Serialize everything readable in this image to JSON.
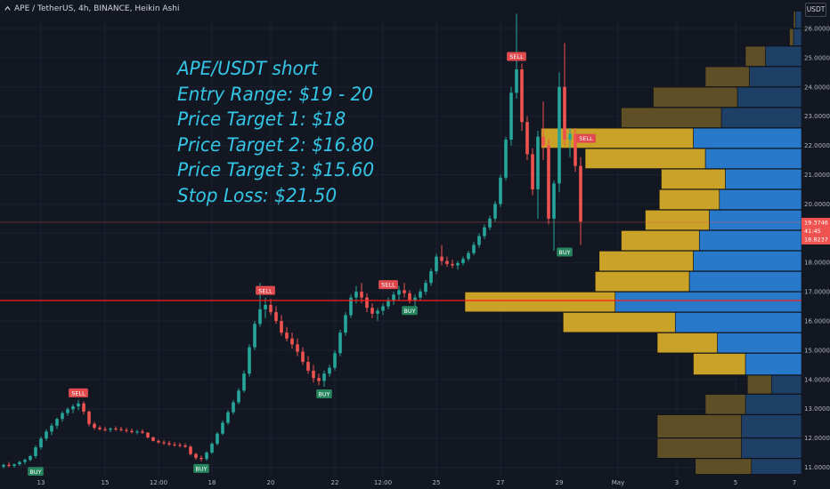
{
  "header": {
    "symbol_line": "APE / TetherUS, 4h, BINANCE, Heikin Ashi",
    "currency": "USDT"
  },
  "annotation": {
    "lines": [
      "APE/USDT short",
      "Entry Range: $19 - 20",
      "Price Target 1: $18",
      "Price Target 2: $16.80",
      "Price Target 3: $15.60",
      "Stop Loss: $21.50"
    ]
  },
  "colors": {
    "background": "#131722",
    "up": "#26a69a",
    "down": "#ef5350",
    "text": "#b2b5be",
    "annotation": "#34c6e6",
    "support_line": "#ff1a1a",
    "vp_up_bright": "#2879c9",
    "vp_down_bright": "#c9a227",
    "vp_up_dim": "#1e3f66",
    "vp_down_dim": "#5e4f26"
  },
  "price_scale": {
    "labels": [
      "26.0000",
      "25.0000",
      "24.0000",
      "23.0000",
      "22.0000",
      "21.0000",
      "20.0000",
      "19.0000",
      "18.0000",
      "17.0000",
      "16.0000",
      "15.0000",
      "14.0000",
      "13.0000",
      "12.0000",
      "11.0000"
    ]
  },
  "current_price": {
    "price": "19.3746",
    "countdown": "41:45",
    "high": "18.8237"
  },
  "time_axis": {
    "labels": [
      "13",
      "15",
      "12:00",
      "18",
      "20",
      "22",
      "12:00",
      "25",
      "27",
      "29",
      "May",
      "3",
      "5",
      "7"
    ]
  },
  "chart_data": {
    "type": "candlestick",
    "symbol": "APE / TetherUS",
    "interval": "4h",
    "exchange": "BINANCE",
    "candle_style": "Heikin Ashi",
    "ylim": [
      10.8,
      26.5
    ],
    "y_ticks": [
      11,
      12,
      13,
      14,
      15,
      16,
      17,
      18,
      19,
      20,
      21,
      22,
      23,
      24,
      25,
      26
    ],
    "x_ticks": [
      "13",
      "15",
      "12:00",
      "18",
      "20",
      "22",
      "12:00",
      "25",
      "27",
      "29",
      "May",
      "3",
      "5",
      "7"
    ],
    "x_tick_index": [
      7,
      19,
      29,
      39,
      50,
      62,
      71,
      81,
      93,
      104,
      115,
      126,
      137,
      148
    ],
    "horizontal_line": 16.7,
    "last_price": 19.3746,
    "candles": [
      [
        11.02,
        11.12,
        10.96,
        11.08
      ],
      [
        11.08,
        11.18,
        11.0,
        11.05
      ],
      [
        11.05,
        11.12,
        10.98,
        11.1
      ],
      [
        11.1,
        11.22,
        11.05,
        11.18
      ],
      [
        11.18,
        11.3,
        11.1,
        11.25
      ],
      [
        11.25,
        11.42,
        11.2,
        11.38
      ],
      [
        11.38,
        11.75,
        11.3,
        11.68
      ],
      [
        11.68,
        12.05,
        11.6,
        11.98
      ],
      [
        11.98,
        12.3,
        11.9,
        12.22
      ],
      [
        12.22,
        12.5,
        12.1,
        12.42
      ],
      [
        12.42,
        12.7,
        12.32,
        12.65
      ],
      [
        12.65,
        12.92,
        12.55,
        12.85
      ],
      [
        12.85,
        13.05,
        12.75,
        12.98
      ],
      [
        12.98,
        13.15,
        12.85,
        13.08
      ],
      [
        13.08,
        13.3,
        12.95,
        13.18
      ],
      [
        13.18,
        13.25,
        12.8,
        12.9
      ],
      [
        12.9,
        12.95,
        12.4,
        12.48
      ],
      [
        12.48,
        12.55,
        12.28,
        12.35
      ],
      [
        12.35,
        12.42,
        12.25,
        12.3
      ],
      [
        12.3,
        12.38,
        12.22,
        12.28
      ],
      [
        12.28,
        12.36,
        12.2,
        12.32
      ],
      [
        12.32,
        12.4,
        12.24,
        12.3
      ],
      [
        12.3,
        12.38,
        12.22,
        12.27
      ],
      [
        12.27,
        12.35,
        12.18,
        12.24
      ],
      [
        12.24,
        12.32,
        12.15,
        12.2
      ],
      [
        12.2,
        12.28,
        12.12,
        12.22
      ],
      [
        12.22,
        12.3,
        12.14,
        12.18
      ],
      [
        12.18,
        12.2,
        11.98,
        12.02
      ],
      [
        12.02,
        12.05,
        11.88,
        11.9
      ],
      [
        11.9,
        11.95,
        11.8,
        11.85
      ],
      [
        11.85,
        11.92,
        11.76,
        11.82
      ],
      [
        11.82,
        11.9,
        11.72,
        11.78
      ],
      [
        11.78,
        11.86,
        11.7,
        11.76
      ],
      [
        11.76,
        11.84,
        11.68,
        11.74
      ],
      [
        11.74,
        11.82,
        11.66,
        11.7
      ],
      [
        11.7,
        11.75,
        11.4,
        11.45
      ],
      [
        11.45,
        11.5,
        11.25,
        11.32
      ],
      [
        11.32,
        11.4,
        11.2,
        11.28
      ],
      [
        11.28,
        11.55,
        11.22,
        11.5
      ],
      [
        11.5,
        11.85,
        11.45,
        11.8
      ],
      [
        11.8,
        12.2,
        11.75,
        12.15
      ],
      [
        12.15,
        12.6,
        12.1,
        12.52
      ],
      [
        12.52,
        12.95,
        12.45,
        12.88
      ],
      [
        12.88,
        13.3,
        12.8,
        13.22
      ],
      [
        13.22,
        13.7,
        13.15,
        13.62
      ],
      [
        13.62,
        14.3,
        13.55,
        14.2
      ],
      [
        14.2,
        15.2,
        14.1,
        15.1
      ],
      [
        15.1,
        16.0,
        15.0,
        15.9
      ],
      [
        15.9,
        17.3,
        15.8,
        16.4
      ],
      [
        16.4,
        16.8,
        16.1,
        16.55
      ],
      [
        16.55,
        16.75,
        16.2,
        16.3
      ],
      [
        16.3,
        16.5,
        15.9,
        16.0
      ],
      [
        16.0,
        16.2,
        15.5,
        15.6
      ],
      [
        15.6,
        15.8,
        15.3,
        15.4
      ],
      [
        15.4,
        15.6,
        15.05,
        15.2
      ],
      [
        15.2,
        15.4,
        14.8,
        14.95
      ],
      [
        14.95,
        15.1,
        14.5,
        14.6
      ],
      [
        14.6,
        14.8,
        14.2,
        14.3
      ],
      [
        14.3,
        14.5,
        13.9,
        14.05
      ],
      [
        14.05,
        14.2,
        13.8,
        13.95
      ],
      [
        13.95,
        14.3,
        13.75,
        14.2
      ],
      [
        14.2,
        14.5,
        14.1,
        14.4
      ],
      [
        14.4,
        15.0,
        14.3,
        14.9
      ],
      [
        14.9,
        15.7,
        14.8,
        15.6
      ],
      [
        15.6,
        16.3,
        15.5,
        16.2
      ],
      [
        16.2,
        16.9,
        16.1,
        16.8
      ],
      [
        16.8,
        17.2,
        16.6,
        17.0
      ],
      [
        17.0,
        17.3,
        16.6,
        16.8
      ],
      [
        16.8,
        16.95,
        16.3,
        16.45
      ],
      [
        16.45,
        16.6,
        16.1,
        16.25
      ],
      [
        16.25,
        16.45,
        16.0,
        16.35
      ],
      [
        16.35,
        16.6,
        16.2,
        16.5
      ],
      [
        16.5,
        16.8,
        16.4,
        16.7
      ],
      [
        16.7,
        17.0,
        16.55,
        16.9
      ],
      [
        16.9,
        17.2,
        16.7,
        17.05
      ],
      [
        17.05,
        17.3,
        16.8,
        16.95
      ],
      [
        16.95,
        17.05,
        16.6,
        16.7
      ],
      [
        16.7,
        16.9,
        16.5,
        16.8
      ],
      [
        16.8,
        17.1,
        16.7,
        17.0
      ],
      [
        17.0,
        17.4,
        16.9,
        17.3
      ],
      [
        17.3,
        17.8,
        17.2,
        17.7
      ],
      [
        17.7,
        18.3,
        17.6,
        18.2
      ],
      [
        18.2,
        18.6,
        17.9,
        18.05
      ],
      [
        18.05,
        18.2,
        17.85,
        17.95
      ],
      [
        17.95,
        18.1,
        17.8,
        17.9
      ],
      [
        17.9,
        18.05,
        17.75,
        17.98
      ],
      [
        17.98,
        18.2,
        17.9,
        18.12
      ],
      [
        18.12,
        18.4,
        18.05,
        18.32
      ],
      [
        18.32,
        18.7,
        18.25,
        18.6
      ],
      [
        18.6,
        19.0,
        18.5,
        18.9
      ],
      [
        18.9,
        19.3,
        18.8,
        19.2
      ],
      [
        19.2,
        19.6,
        19.1,
        19.5
      ],
      [
        19.5,
        20.1,
        19.4,
        20.0
      ],
      [
        20.0,
        21.0,
        19.9,
        20.9
      ],
      [
        20.9,
        22.3,
        20.8,
        22.2
      ],
      [
        22.2,
        24.0,
        22.0,
        23.8
      ],
      [
        23.8,
        26.5,
        23.6,
        24.6
      ],
      [
        24.6,
        24.8,
        22.5,
        22.8
      ],
      [
        22.8,
        23.0,
        21.5,
        21.7
      ],
      [
        21.7,
        21.9,
        20.3,
        20.5
      ],
      [
        20.5,
        22.5,
        19.5,
        22.3
      ],
      [
        22.3,
        23.5,
        21.5,
        22.0
      ],
      [
        22.0,
        22.2,
        19.3,
        19.5
      ],
      [
        19.5,
        20.8,
        18.4,
        20.7
      ],
      [
        20.7,
        24.5,
        20.4,
        24.0
      ],
      [
        24.0,
        25.5,
        22.0,
        22.2
      ],
      [
        22.2,
        22.6,
        21.6,
        22.4
      ],
      [
        22.4,
        22.6,
        21.1,
        21.3
      ],
      [
        21.3,
        21.6,
        18.6,
        19.4
      ]
    ],
    "signals": [
      {
        "label": "BUY",
        "type": "buy",
        "index": 6,
        "price": 11.1
      },
      {
        "label": "SELL",
        "type": "sell",
        "index": 14,
        "price": 13.3
      },
      {
        "label": "BUY",
        "type": "buy",
        "index": 37,
        "price": 11.2
      },
      {
        "label": "SELL",
        "type": "sell",
        "index": 49,
        "price": 16.8
      },
      {
        "label": "BUY",
        "type": "buy",
        "index": 60,
        "price": 13.75
      },
      {
        "label": "SELL",
        "type": "sell",
        "index": 72,
        "price": 17.0
      },
      {
        "label": "BUY",
        "type": "buy",
        "index": 76,
        "price": 16.6
      },
      {
        "label": "SELL",
        "type": "sell",
        "index": 96,
        "price": 24.8
      },
      {
        "label": "BUY",
        "type": "buy",
        "index": 105,
        "price": 18.6
      },
      {
        "label": "SELL",
        "type": "sell",
        "index": 109,
        "price": 22.0
      }
    ],
    "volume_profile": [
      {
        "low": 10.75,
        "high": 11.3,
        "up": 0.25,
        "down": 0.28,
        "value_area": false
      },
      {
        "low": 11.3,
        "high": 12.0,
        "up": 0.3,
        "down": 0.42,
        "value_area": false
      },
      {
        "low": 12.0,
        "high": 12.8,
        "up": 0.3,
        "down": 0.42,
        "value_area": false
      },
      {
        "low": 12.8,
        "high": 13.5,
        "up": 0.28,
        "down": 0.2,
        "value_area": false
      },
      {
        "low": 13.5,
        "high": 14.15,
        "up": 0.15,
        "down": 0.12,
        "value_area": false
      },
      {
        "low": 14.15,
        "high": 14.9,
        "up": 0.28,
        "down": 0.26,
        "value_area": true
      },
      {
        "low": 14.9,
        "high": 15.6,
        "up": 0.42,
        "down": 0.3,
        "value_area": true
      },
      {
        "low": 15.6,
        "high": 16.3,
        "up": 0.63,
        "down": 0.56,
        "value_area": true
      },
      {
        "low": 16.3,
        "high": 17.0,
        "up": 0.93,
        "down": 0.75,
        "value_area": true
      },
      {
        "low": 17.0,
        "high": 17.7,
        "up": 0.56,
        "down": 0.47,
        "value_area": true
      },
      {
        "low": 17.7,
        "high": 18.4,
        "up": 0.54,
        "down": 0.47,
        "value_area": true
      },
      {
        "low": 18.4,
        "high": 19.1,
        "up": 0.51,
        "down": 0.39,
        "value_area": true
      },
      {
        "low": 19.1,
        "high": 19.8,
        "up": 0.46,
        "down": 0.32,
        "value_area": true
      },
      {
        "low": 19.8,
        "high": 20.5,
        "up": 0.41,
        "down": 0.3,
        "value_area": true
      },
      {
        "low": 20.5,
        "high": 21.2,
        "up": 0.38,
        "down": 0.32,
        "value_area": true
      },
      {
        "low": 21.2,
        "high": 21.9,
        "up": 0.48,
        "down": 0.6,
        "value_area": true
      },
      {
        "low": 21.9,
        "high": 22.6,
        "up": 0.54,
        "down": 0.76,
        "value_area": true
      },
      {
        "low": 22.6,
        "high": 23.3,
        "up": 0.4,
        "down": 0.5,
        "value_area": false
      },
      {
        "low": 23.3,
        "high": 24.0,
        "up": 0.32,
        "down": 0.42,
        "value_area": false
      },
      {
        "low": 24.0,
        "high": 24.7,
        "up": 0.26,
        "down": 0.22,
        "value_area": false
      },
      {
        "low": 24.7,
        "high": 25.4,
        "up": 0.18,
        "down": 0.1,
        "value_area": false
      },
      {
        "low": 25.4,
        "high": 26.0,
        "up": 0.04,
        "down": 0.02,
        "value_area": false
      },
      {
        "low": 26.0,
        "high": 26.6,
        "up": 0.03,
        "down": 0.01,
        "value_area": false
      }
    ]
  }
}
